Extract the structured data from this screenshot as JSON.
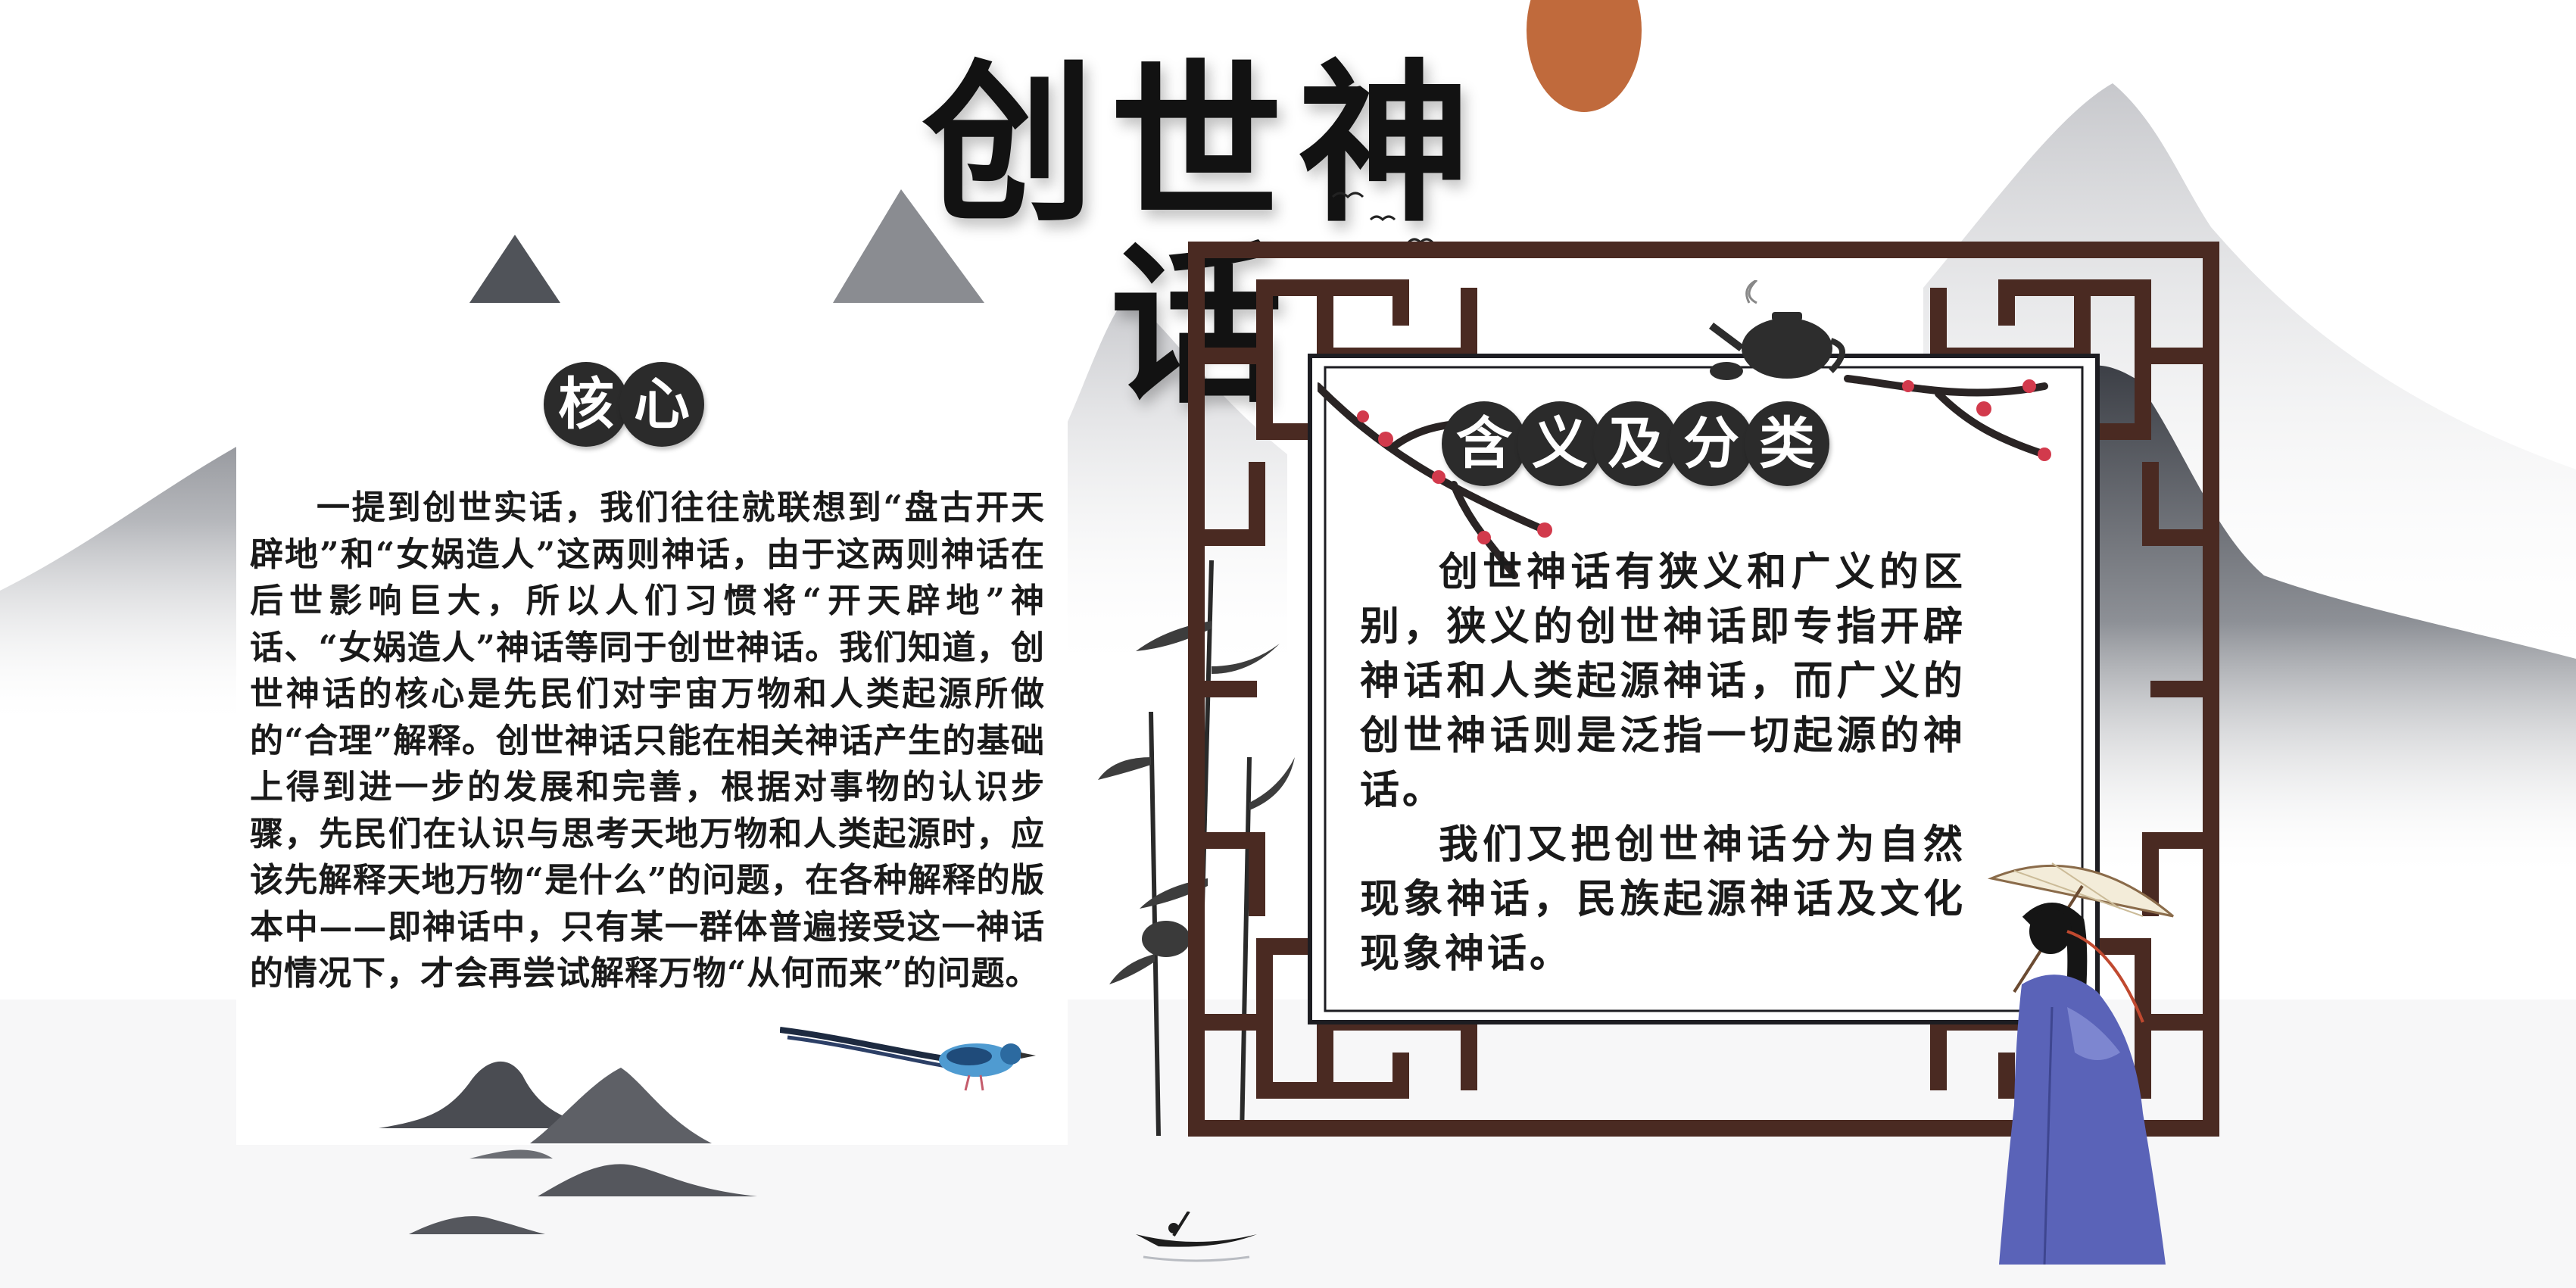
{
  "poster": {
    "title": "创世神话",
    "colors": {
      "background": "#ffffff",
      "ink_dark": "#2b2b2b",
      "frame_brown": "#4a2a22",
      "sun_orange": "#c06a3c",
      "robe_blue": "#5a63b8",
      "blossom_red": "#d23a4c"
    },
    "icons": [
      "sun",
      "ink-mountains",
      "lattice-frame",
      "teapot",
      "plum-branch",
      "bamboo",
      "bird",
      "boat",
      "woman-with-umbrella"
    ]
  },
  "core_section": {
    "badge_chars": [
      "核",
      "心"
    ],
    "paragraph": "一提到创世实话，我们往往就联想到“盘古开天辟地”和“女娲造人”这两则神话，由于这两则神话在后世影响巨大，所以人们习惯将“开天辟地”神话、“女娲造人”神话等同于创世神话。我们知道，创世神话的核心是先民们对宇宙万物和人类起源所做的“合理”解释。创世神话只能在相关神话产生的基础上得到进一步的发展和完善，根据对事物的认识步骤，先民们在认识与思考天地万物和人类起源时，应该先解释天地万物“是什么”的问题，在各种解释的版本中——即神话中，只有某一群体普遍接受这一神话的情况下，才会再尝试解释万物“从何而来”的问题。"
  },
  "meaning_section": {
    "badge_chars": [
      "含",
      "义",
      "及",
      "分",
      "类"
    ],
    "paragraphs": [
      "创世神话有狭义和广义的区别，狭义的创世神话即专指开辟神话和人类起源神话，而广义的创世神话则是泛指一切起源的神话。",
      "我们又把创世神话分为自然现象神话，民族起源神话及文化现象神话。"
    ]
  }
}
